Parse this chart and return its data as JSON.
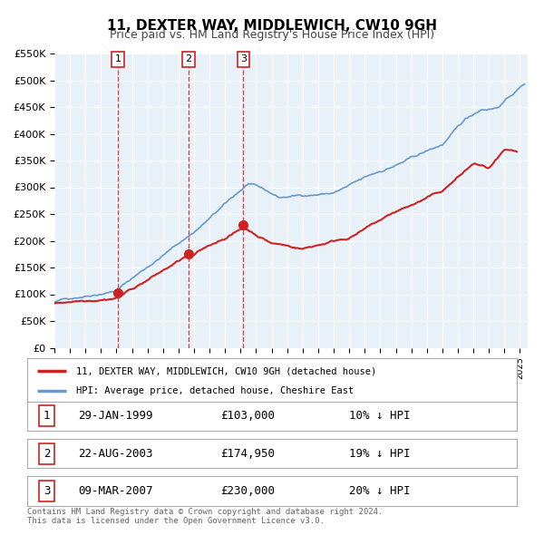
{
  "title": "11, DEXTER WAY, MIDDLEWICH, CW10 9GH",
  "subtitle": "Price paid vs. HM Land Registry's House Price Index (HPI)",
  "background_color": "#ffffff",
  "plot_bg_color": "#e8f0f8",
  "grid_color": "#ffffff",
  "ylim": [
    0,
    550000
  ],
  "yticks": [
    0,
    50000,
    100000,
    150000,
    200000,
    250000,
    300000,
    350000,
    400000,
    450000,
    500000,
    550000
  ],
  "ytick_labels": [
    "£0",
    "£50K",
    "£100K",
    "£150K",
    "£200K",
    "£250K",
    "£300K",
    "£350K",
    "£400K",
    "£450K",
    "£500K",
    "£550K"
  ],
  "xlim_start": 1995.0,
  "xlim_end": 2025.5,
  "hpi_color": "#6699cc",
  "price_color": "#cc2222",
  "sale_marker_color": "#cc2222",
  "vline_color": "#cc2222",
  "sales": [
    {
      "label": "1",
      "date_num": 1999.08,
      "price": 103000,
      "text": "29-JAN-1999",
      "amount": "£103,000",
      "hpi_diff": "10% ↓ HPI"
    },
    {
      "label": "2",
      "date_num": 2003.64,
      "price": 174950,
      "text": "22-AUG-2003",
      "amount": "£174,950",
      "hpi_diff": "19% ↓ HPI"
    },
    {
      "label": "3",
      "date_num": 2007.18,
      "price": 230000,
      "text": "09-MAR-2007",
      "amount": "£230,000",
      "hpi_diff": "20% ↓ HPI"
    }
  ],
  "legend_property_label": "11, DEXTER WAY, MIDDLEWICH, CW10 9GH (detached house)",
  "legend_hpi_label": "HPI: Average price, detached house, Cheshire East",
  "footer_line1": "Contains HM Land Registry data © Crown copyright and database right 2024.",
  "footer_line2": "This data is licensed under the Open Government Licence v3.0."
}
